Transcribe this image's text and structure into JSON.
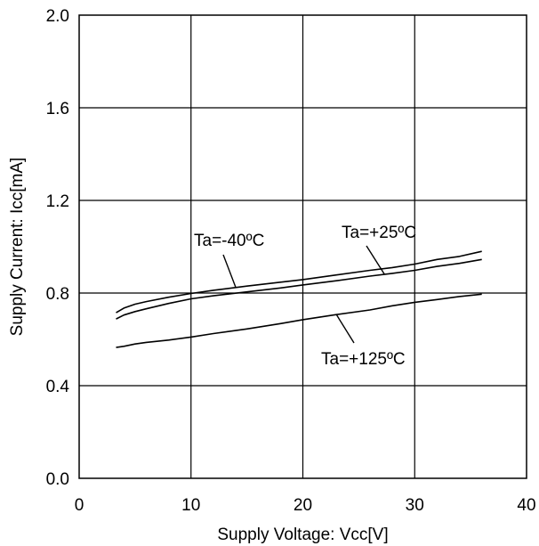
{
  "chart_data": {
    "type": "line",
    "xlabel": "Supply Voltage: Vcc[V]",
    "ylabel": "Supply Current: Icc[mA]",
    "xlim": [
      0,
      40
    ],
    "ylim": [
      0.0,
      2.0
    ],
    "x_ticks": [
      "0",
      "10",
      "20",
      "30",
      "40"
    ],
    "y_ticks": [
      "0.0",
      "0.4",
      "0.8",
      "1.2",
      "1.6",
      "2.0"
    ],
    "grid": true,
    "series": [
      {
        "name": "Ta=-40ºC",
        "x": [
          3.3,
          4,
          5,
          6,
          8,
          10,
          12,
          15,
          18,
          20,
          23,
          26,
          28,
          30,
          32,
          34,
          36
        ],
        "y": [
          0.715,
          0.735,
          0.752,
          0.763,
          0.782,
          0.798,
          0.812,
          0.83,
          0.847,
          0.858,
          0.878,
          0.898,
          0.91,
          0.925,
          0.945,
          0.958,
          0.98
        ]
      },
      {
        "name": "Ta=+25ºC",
        "x": [
          3.3,
          4,
          5,
          6,
          8,
          10,
          12,
          15,
          18,
          20,
          23,
          26,
          28,
          30,
          32,
          34,
          36
        ],
        "y": [
          0.688,
          0.705,
          0.72,
          0.732,
          0.755,
          0.775,
          0.788,
          0.805,
          0.822,
          0.835,
          0.853,
          0.873,
          0.885,
          0.898,
          0.915,
          0.928,
          0.945
        ]
      },
      {
        "name": "Ta=+125ºC",
        "x": [
          3.3,
          4,
          5,
          6,
          8,
          10,
          12,
          15,
          18,
          20,
          23,
          26,
          28,
          30,
          32,
          34,
          36
        ],
        "y": [
          0.565,
          0.57,
          0.58,
          0.587,
          0.597,
          0.61,
          0.625,
          0.645,
          0.668,
          0.685,
          0.707,
          0.727,
          0.745,
          0.76,
          0.772,
          0.785,
          0.795
        ]
      }
    ],
    "annotations": [
      {
        "text": "Ta=-40ºC",
        "series": "Ta=-40ºC"
      },
      {
        "text": "Ta=+25ºC",
        "series": "Ta=+25ºC"
      },
      {
        "text": "Ta=+125ºC",
        "series": "Ta=+125ºC"
      }
    ]
  }
}
